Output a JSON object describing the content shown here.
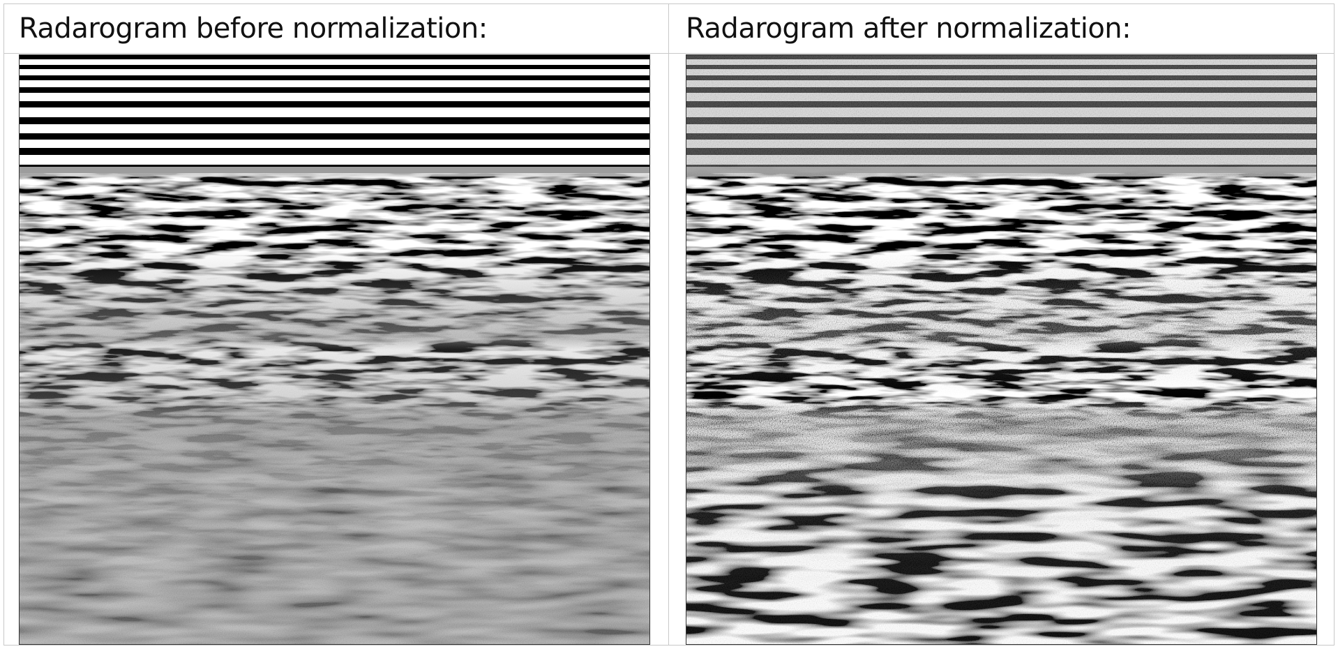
{
  "panels": [
    {
      "title": "Radarogram before normalization:"
    },
    {
      "title": "Radarogram after normalization:"
    }
  ]
}
